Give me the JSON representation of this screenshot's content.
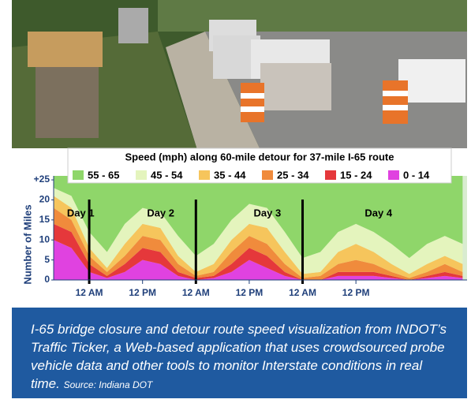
{
  "chart_data": {
    "type": "stacked-area",
    "title": "Speed (mph) along 60-mile detour for 37-mile I-65 route",
    "ylabel": "Number of Miles",
    "x": [
      -8,
      -4,
      0,
      4,
      8,
      12,
      16,
      20,
      24,
      28,
      32,
      36,
      40,
      44,
      48,
      52,
      56,
      60,
      64,
      68,
      72,
      76,
      80,
      84
    ],
    "xlim": [
      -8,
      85
    ],
    "xticks": [
      {
        "value": 0,
        "label": "12 AM"
      },
      {
        "value": 12,
        "label": "12 PM"
      },
      {
        "value": 24,
        "label": "12 AM"
      },
      {
        "value": 36,
        "label": "12 PM"
      },
      {
        "value": 48,
        "label": "12 AM"
      },
      {
        "value": 60,
        "label": "12 PM"
      }
    ],
    "ylim": [
      0,
      26
    ],
    "yticks": [
      0,
      5,
      10,
      15,
      20,
      {
        "value": 25,
        "label": "+25"
      }
    ],
    "separators": [
      0,
      24,
      48
    ],
    "annotations": [
      {
        "text": "Day 1",
        "x": -5
      },
      {
        "text": "Day 2",
        "x": 13
      },
      {
        "text": "Day 3",
        "x": 37
      },
      {
        "text": "Day 4",
        "x": 62
      }
    ],
    "series": [
      {
        "name": "55 - 65",
        "color": "#8fd66a",
        "values": [
          3,
          5,
          14,
          19,
          12,
          8,
          9,
          15,
          20,
          17,
          11,
          7,
          8,
          14,
          20.5,
          19,
          14,
          12,
          14,
          17,
          20.5,
          17,
          15,
          17
        ]
      },
      {
        "name": "45 - 54",
        "color": "#e4f4bd",
        "values": [
          2,
          3,
          4,
          4,
          5,
          4,
          4,
          5,
          4,
          5,
          5,
          5,
          5,
          5,
          4,
          5,
          5,
          5,
          5,
          5,
          4,
          5,
          5,
          5
        ]
      },
      {
        "name": "35 - 44",
        "color": "#f6c55c",
        "values": [
          3,
          3,
          2,
          1,
          3,
          3,
          3,
          2,
          1,
          2,
          3,
          3,
          4,
          3,
          1,
          1,
          3,
          4,
          3,
          2,
          1,
          2,
          2,
          2
        ]
      },
      {
        "name": "25 - 34",
        "color": "#f08b3c",
        "values": [
          4,
          3,
          2,
          1,
          2,
          3,
          3,
          2,
          0.5,
          1,
          3,
          3,
          3,
          2,
          0.5,
          1,
          2,
          3,
          2,
          1,
          0.5,
          1,
          2,
          1
        ]
      },
      {
        "name": "15 - 24",
        "color": "#e5383b",
        "values": [
          4,
          4,
          2,
          0.5,
          2,
          3,
          3,
          1,
          0.5,
          0.5,
          2,
          3,
          3,
          1,
          0,
          0,
          1,
          1,
          1,
          0.5,
          0,
          0.5,
          1,
          0.5
        ]
      },
      {
        "name": "0 - 14",
        "color": "#e042e0",
        "values": [
          10,
          8,
          2,
          0.5,
          2,
          5,
          4,
          1,
          0,
          0.5,
          2,
          5,
          3,
          1,
          0,
          0,
          1,
          1,
          1,
          0.5,
          0,
          0.5,
          1,
          0.5
        ]
      }
    ]
  },
  "caption": {
    "text": "I-65 bridge closure and detour route speed visualization from INDOT’s Traffic Ticker, a Web-based application that uses crowdsourced probe vehicle data and other tools to monitor Interstate conditions in real time.",
    "source": "Source: Indiana DOT"
  }
}
